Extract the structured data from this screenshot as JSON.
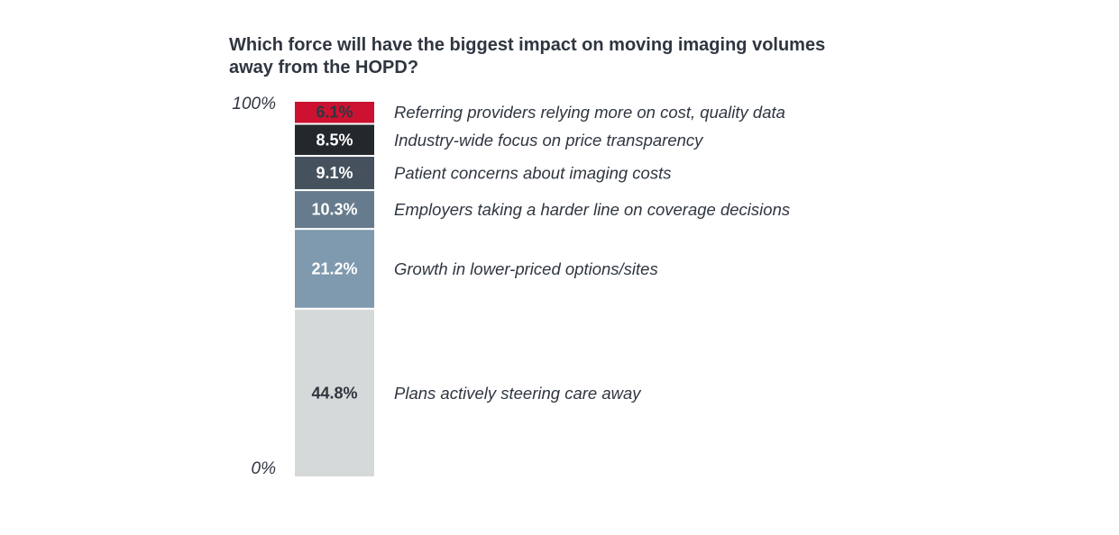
{
  "chart_data": {
    "type": "bar",
    "stacked": true,
    "title": "Which force will have the biggest impact on moving imaging volumes away from the HOPD?",
    "y_ticks": [
      "100%",
      "0%"
    ],
    "ylim": [
      0,
      100
    ],
    "legend": "right",
    "segments": [
      {
        "category": "Plans actively steering care away",
        "value": 44.8,
        "label": "44.8%",
        "color": "#d6d9da",
        "text_color": "#2f3640"
      },
      {
        "category": "Growth in lower-priced options/sites",
        "value": 21.2,
        "label": "21.2%",
        "color": "#7f99ae",
        "text_color": "#ffffff"
      },
      {
        "category": "Employers taking a harder line on coverage decisions",
        "value": 10.3,
        "label": "10.3%",
        "color": "#667b8d",
        "text_color": "#ffffff"
      },
      {
        "category": "Patient concerns about imaging costs",
        "value": 9.1,
        "label": "9.1%",
        "color": "#45525e",
        "text_color": "#ffffff"
      },
      {
        "category": "Industry-wide focus on price transparency",
        "value": 8.5,
        "label": "8.5%",
        "color": "#23282d",
        "text_color": "#ffffff"
      },
      {
        "category": "Referring providers relying more on cost, quality data",
        "value": 6.1,
        "label": "6.1%",
        "color": "#cc1230",
        "text_color": "#2f3640"
      }
    ]
  }
}
